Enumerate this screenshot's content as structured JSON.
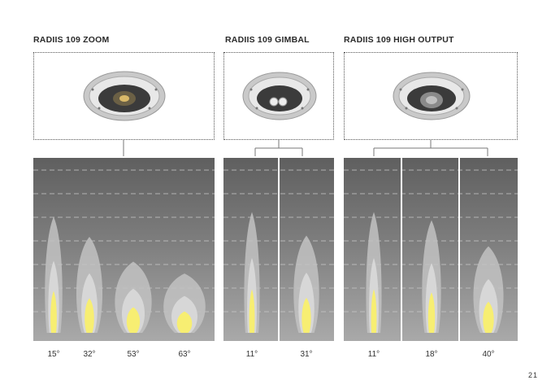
{
  "sections": [
    {
      "title": "RADIIS 109 ZOOM",
      "lamp": "lamp-zoom",
      "beams": [
        {
          "angle_label": "15°",
          "spread": 15
        },
        {
          "angle_label": "32°",
          "spread": 32
        },
        {
          "angle_label": "53°",
          "spread": 53
        },
        {
          "angle_label": "63°",
          "spread": 63
        }
      ]
    },
    {
      "title": "RADIIS 109 GIMBAL",
      "lamp": "lamp-gimbal",
      "beams": [
        {
          "angle_label": "11°",
          "spread": 11
        },
        {
          "angle_label": "31°",
          "spread": 31
        }
      ]
    },
    {
      "title": "RADIIS 109 HIGH OUTPUT",
      "lamp": "lamp-high-output",
      "beams": [
        {
          "angle_label": "11°",
          "spread": 11
        },
        {
          "angle_label": "18°",
          "spread": 18
        },
        {
          "angle_label": "40°",
          "spread": 40
        }
      ]
    }
  ],
  "page_number": "21",
  "colors": {
    "beam_core": "#f7ee72",
    "beam_mid": "#d8d8d8",
    "beam_outer": "#c2c2c2",
    "panel_top": "#5f5f5f",
    "panel_bottom": "#a9a9a9"
  }
}
